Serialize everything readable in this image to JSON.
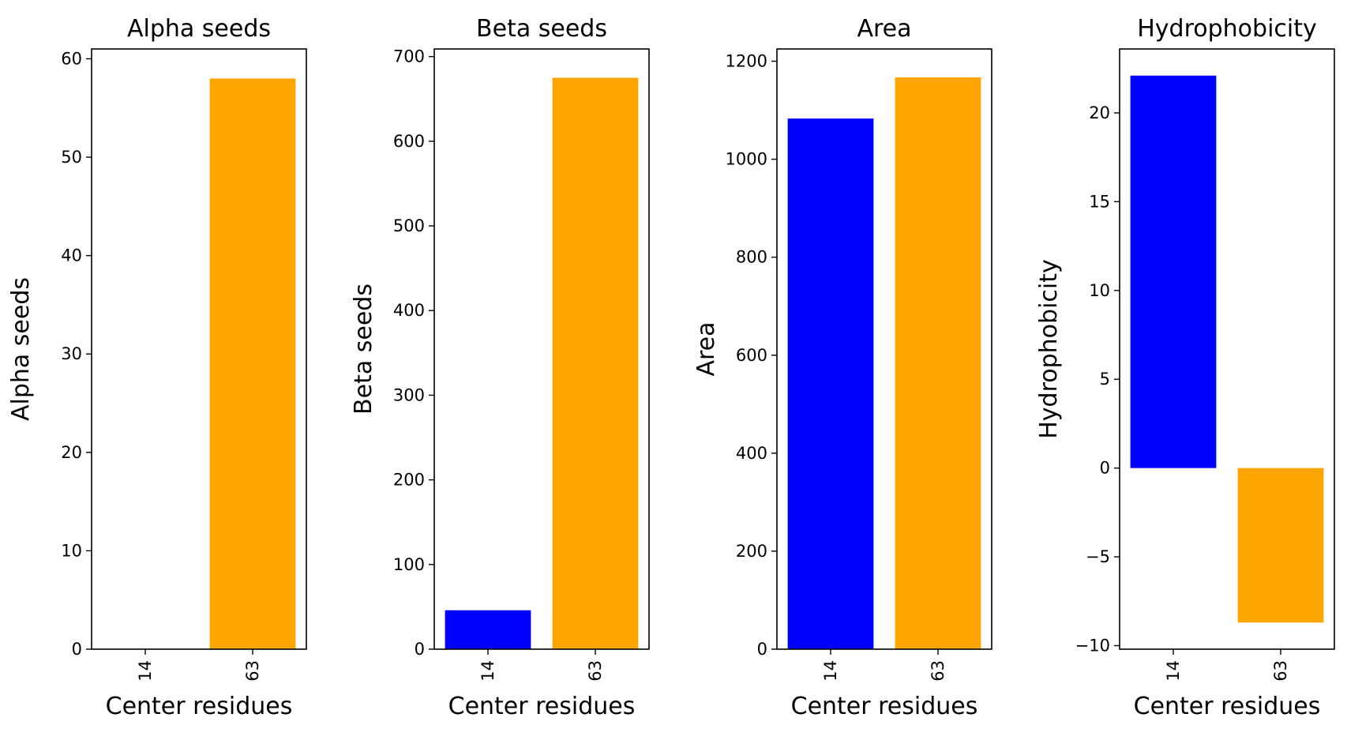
{
  "chart_data": [
    {
      "type": "bar",
      "title": "Alpha seeds",
      "xlabel": "Center residues",
      "ylabel": "Alpha seeds",
      "categories": [
        "14",
        "63"
      ],
      "values": [
        0,
        58
      ],
      "colors": [
        "#0000ff",
        "#ffa500"
      ],
      "ylim": [
        0,
        61
      ],
      "yticks": [
        0,
        10,
        20,
        30,
        40,
        50,
        60
      ],
      "ytick_labels": [
        "0",
        "10",
        "20",
        "30",
        "40",
        "50",
        "60"
      ]
    },
    {
      "type": "bar",
      "title": "Beta seeds",
      "xlabel": "Center residues",
      "ylabel": "Beta seeds",
      "categories": [
        "14",
        "63"
      ],
      "values": [
        46,
        675
      ],
      "colors": [
        "#0000ff",
        "#ffa500"
      ],
      "ylim": [
        0,
        709
      ],
      "yticks": [
        0,
        100,
        200,
        300,
        400,
        500,
        600,
        700
      ],
      "ytick_labels": [
        "0",
        "100",
        "200",
        "300",
        "400",
        "500",
        "600",
        "700"
      ]
    },
    {
      "type": "bar",
      "title": "Area",
      "xlabel": "Center residues",
      "ylabel": "Area",
      "categories": [
        "14",
        "63"
      ],
      "values": [
        1083,
        1167
      ],
      "colors": [
        "#0000ff",
        "#ffa500"
      ],
      "ylim": [
        0,
        1225
      ],
      "yticks": [
        0,
        200,
        400,
        600,
        800,
        1000,
        1200
      ],
      "ytick_labels": [
        "0",
        "200",
        "400",
        "600",
        "800",
        "1000",
        "1200"
      ]
    },
    {
      "type": "bar",
      "title": "Hydrophobicity",
      "xlabel": "Center residues",
      "ylabel": "Hydrophobicity",
      "categories": [
        "14",
        "63"
      ],
      "values": [
        22.1,
        -8.7
      ],
      "colors": [
        "#0000ff",
        "#ffa500"
      ],
      "ylim": [
        -10.2,
        23.6
      ],
      "yticks": [
        -10,
        -5,
        0,
        5,
        10,
        15,
        20
      ],
      "ytick_labels": [
        "−10",
        "−5",
        "0",
        "5",
        "10",
        "15",
        "20"
      ]
    }
  ]
}
